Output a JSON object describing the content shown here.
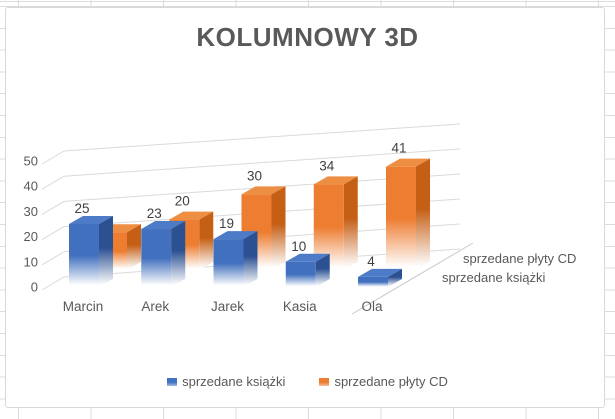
{
  "chart_data": {
    "type": "bar",
    "variant": "3d-column",
    "title": "KOLUMNOWY 3D",
    "categories": [
      "Marcin",
      "Arek",
      "Jarek",
      "Kasia",
      "Ola"
    ],
    "series": [
      {
        "name": "sprzedane książki",
        "color": "#4472C4",
        "values": [
          25,
          23,
          19,
          10,
          4
        ],
        "labels_visible": [
          true,
          true,
          true,
          true,
          true
        ]
      },
      {
        "name": "sprzedane płyty CD",
        "color": "#ED7D31",
        "values": [
          15,
          20,
          30,
          34,
          41
        ],
        "labels_visible": [
          false,
          true,
          true,
          true,
          true
        ]
      }
    ],
    "y_ticks": [
      0,
      10,
      20,
      30,
      40,
      50
    ],
    "ylim": [
      0,
      50
    ],
    "grid": true,
    "data_labels": true,
    "legend_position": "bottom",
    "series_axis_labels": [
      "sprzedane płyty CD",
      "sprzedane książki"
    ]
  },
  "legend": {
    "items": [
      {
        "label": "sprzedane książki",
        "color": "#4472C4"
      },
      {
        "label": "sprzedane płyty CD",
        "color": "#ED7D31"
      }
    ]
  },
  "colors": {
    "title_text": "#595959",
    "axis_text": "#595959",
    "data_label_text": "#404040",
    "wall_gridline": "#dadada",
    "series_axis_line": "#c9c9c9",
    "worksheet_gridline": "#dcdcdc",
    "chart_border": "#d9d9d9",
    "blue_front": "#4170BE",
    "blue_side": "#2C5193",
    "blue_top": "#4E7BC8",
    "orange_front": "#ED7D31",
    "orange_side": "#C55F15",
    "orange_top": "#EE8E43"
  }
}
